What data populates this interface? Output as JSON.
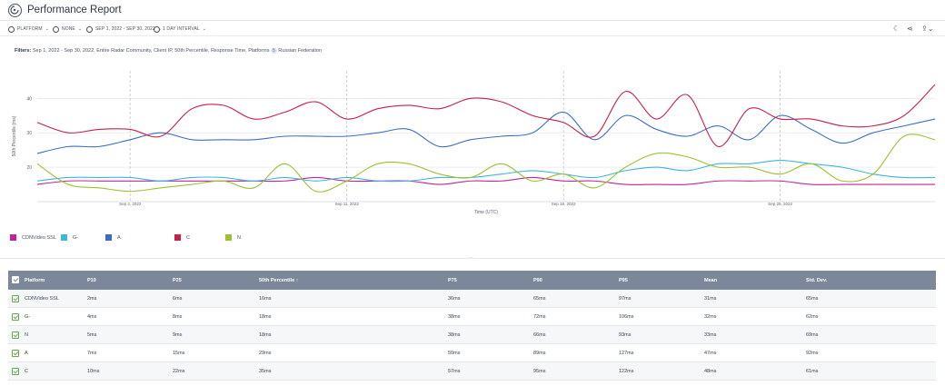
{
  "header": {
    "title": "Performance Report"
  },
  "toolbar": {
    "platform": "PLATFORM",
    "none": "NONE",
    "date_range": "SEP 1, 2022 - SEP 30, 2022",
    "interval": "1 DAY INTERVAL"
  },
  "filters": {
    "label": "Filters:",
    "text": "Sep 1, 2022 - Sep 30, 2022,  Entire Radar Community,  Client IP,  50th Percentile,  Response Time,  Platforms",
    "platforms_count": "5",
    "country": "Russian Federation"
  },
  "chart_data": {
    "type": "line",
    "ylabel": "50th Percentile (ms)",
    "xlabel": "Time (UTC)",
    "y_ticks": [
      20,
      30,
      40
    ],
    "ylim": [
      10,
      48
    ],
    "x_ticks": [
      {
        "label": "Sep 4, 2022",
        "x": 3
      },
      {
        "label": "Sep 11, 2022",
        "x": 10
      },
      {
        "label": "Sep 18, 2022",
        "x": 17
      },
      {
        "label": "Sep 25, 2022",
        "x": 24
      }
    ],
    "x": [
      0,
      1,
      2,
      3,
      4,
      5,
      6,
      7,
      8,
      9,
      10,
      11,
      12,
      13,
      14,
      15,
      16,
      17,
      18,
      19,
      20,
      21,
      22,
      23,
      24,
      25,
      26,
      27,
      28,
      29
    ],
    "series": [
      {
        "name": "CDNVideo SSL",
        "color": "#c0249c",
        "values": [
          15,
          16,
          16,
          16,
          16,
          16,
          16,
          16,
          16,
          17,
          16,
          16,
          16,
          15,
          16,
          16,
          17,
          16,
          16,
          15,
          15,
          15,
          16,
          16,
          16,
          15,
          15,
          15,
          15,
          15
        ]
      },
      {
        "name": "G-",
        "color": "#3eb6e0",
        "values": [
          16,
          17,
          17,
          17,
          16,
          17,
          17,
          16,
          17,
          16,
          17,
          16,
          16,
          17,
          17,
          18,
          19,
          18,
          17,
          19,
          20,
          19,
          21,
          21,
          22,
          21,
          20,
          18,
          17,
          17
        ]
      },
      {
        "name": "A",
        "color": "#3d6cc8",
        "values": [
          24,
          26,
          26,
          28,
          30,
          28,
          28,
          28,
          29,
          29,
          29,
          30,
          31,
          26,
          28,
          29,
          30,
          36,
          28,
          35,
          31,
          29,
          32,
          28,
          35,
          31,
          27,
          30,
          32,
          34
        ]
      },
      {
        "name": "C",
        "color": "#c81e4a",
        "values": [
          33,
          30,
          31,
          31,
          29,
          37,
          38,
          34,
          36,
          39,
          34,
          37,
          38,
          37,
          40,
          39,
          35,
          33,
          29,
          42,
          34,
          41,
          26,
          37,
          34,
          34,
          32,
          32,
          35,
          44
        ]
      },
      {
        "name": "N",
        "color": "#9ac22e",
        "values": [
          21,
          15,
          14,
          13,
          14,
          15,
          16,
          14,
          21,
          13,
          16,
          21,
          21,
          18,
          17,
          21,
          16,
          18,
          14,
          20,
          24,
          23,
          20,
          20,
          18,
          21,
          16,
          18,
          29,
          28
        ]
      }
    ]
  },
  "legend": [
    {
      "name": "CDNVideo SSL",
      "color": "#c0249c"
    },
    {
      "name": "G-",
      "color": "#3eb6e0"
    },
    {
      "name": "A",
      "color": "#3d6cc8"
    },
    {
      "name": "C",
      "color": "#c81e4a"
    },
    {
      "name": "N",
      "color": "#9ac22e"
    }
  ],
  "table": {
    "headers": [
      "Platform",
      "P10",
      "P25",
      "50th Percentile ↑",
      "P75",
      "P90",
      "P95",
      "Mean",
      "Std. Dev."
    ],
    "rows": [
      [
        "CDNVideo SSL",
        "2ms",
        "6ms",
        "16ms",
        "36ms",
        "65ms",
        "97ms",
        "31ms",
        "65ms"
      ],
      [
        "G-",
        "4ms",
        "8ms",
        "18ms",
        "38ms",
        "72ms",
        "106ms",
        "32ms",
        "62ms"
      ],
      [
        "N",
        "5ms",
        "9ms",
        "18ms",
        "38ms",
        "66ms",
        "93ms",
        "33ms",
        "69ms"
      ],
      [
        "A",
        "7ms",
        "15ms",
        "29ms",
        "50ms",
        "89ms",
        "127ms",
        "47ms",
        "92ms"
      ],
      [
        "C",
        "10ms",
        "22ms",
        "35ms",
        "57ms",
        "95ms",
        "122ms",
        "48ms",
        "61ms"
      ]
    ]
  }
}
